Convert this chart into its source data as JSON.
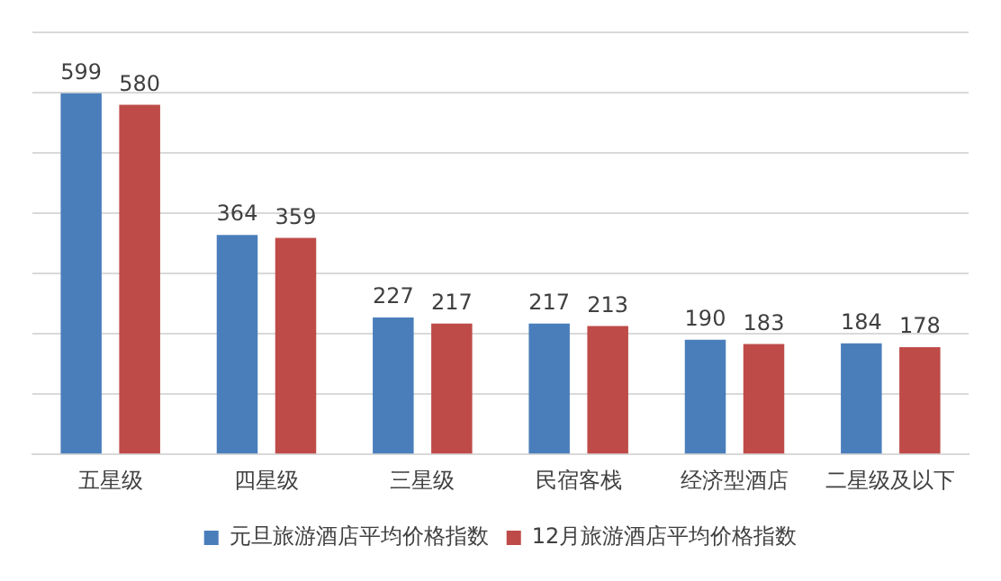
{
  "chart_data": {
    "type": "bar",
    "categories": [
      "五星级",
      "四星级",
      "三星级",
      "民宿客栈",
      "经济型酒店",
      "二星级及以下"
    ],
    "series": [
      {
        "name": "元旦旅游酒店平均价格指数",
        "color": "#4a7ebb",
        "values": [
          599,
          364,
          227,
          217,
          190,
          184
        ]
      },
      {
        "name": "12月旅游酒店平均价格指数",
        "color": "#be4b48",
        "values": [
          580,
          359,
          217,
          213,
          183,
          178
        ]
      }
    ],
    "ylim": [
      0,
      700
    ],
    "yticks": [
      {
        "value": 0,
        "label": null
      },
      {
        "value": 100,
        "label": null
      },
      {
        "value": 200,
        "label": null
      },
      {
        "value": 300,
        "label": null
      },
      {
        "value": 400,
        "label": null
      },
      {
        "value": 500,
        "label": null
      },
      {
        "value": 600,
        "label": null
      },
      {
        "value": 700,
        "label": null
      }
    ],
    "tick_labels": "x",
    "grid": "y",
    "legend": "bottom",
    "data_labels": true
  }
}
